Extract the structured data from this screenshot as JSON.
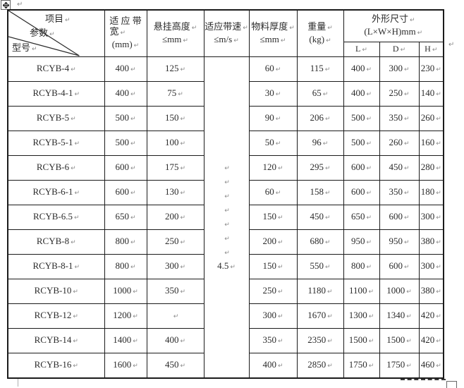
{
  "paragraph_mark": "↵",
  "table": {
    "diagonal_header": {
      "top": "项目",
      "middle": "参数",
      "bottom": "型号"
    },
    "headers": {
      "band_width": {
        "line1": "适 应 带",
        "line2": "宽",
        "line3": "(mm)"
      },
      "suspension_height": {
        "line1": "悬挂高度",
        "line2": "≤mm"
      },
      "belt_speed": {
        "line1": "适应带速",
        "line2": "≤m/s"
      },
      "material_thickness": {
        "line1": "物料厚度",
        "line2": "≤mm"
      },
      "weight": {
        "line1": "重量",
        "line2": "(kg)"
      },
      "dimensions": {
        "line1": "外形尺寸",
        "line2": "(L×W×H)mm",
        "sub": [
          "L",
          "D",
          "H"
        ]
      }
    },
    "belt_speed_value": "4.5",
    "belt_speed_blank_lines": 7,
    "rows": [
      {
        "model": "RCYB-4",
        "band_width": "400",
        "suspension_height": "125",
        "material_thickness": "60",
        "weight": "115",
        "L": "400",
        "D": "300",
        "H": "230"
      },
      {
        "model": "RCYB-4-1",
        "band_width": "400",
        "suspension_height": "75",
        "material_thickness": "30",
        "weight": "65",
        "L": "400",
        "D": "250",
        "H": "140"
      },
      {
        "model": "RCYB-5",
        "band_width": "500",
        "suspension_height": "150",
        "material_thickness": "90",
        "weight": "206",
        "L": "500",
        "D": "350",
        "H": "260"
      },
      {
        "model": "RCYB-5-1",
        "band_width": "500",
        "suspension_height": "100",
        "material_thickness": "50",
        "weight": "96",
        "L": "500",
        "D": "260",
        "H": "160"
      },
      {
        "model": "RCYB-6",
        "band_width": "600",
        "suspension_height": "175",
        "material_thickness": "120",
        "weight": "295",
        "L": "600",
        "D": "450",
        "H": "280"
      },
      {
        "model": "RCYB-6-1",
        "band_width": "600",
        "suspension_height": "130",
        "material_thickness": "60",
        "weight": "158",
        "L": "600",
        "D": "350",
        "H": "180"
      },
      {
        "model": "RCYB-6.5",
        "band_width": "650",
        "suspension_height": "200",
        "material_thickness": "150",
        "weight": "450",
        "L": "650",
        "D": "600",
        "H": "300"
      },
      {
        "model": "RCYB-8",
        "band_width": "800",
        "suspension_height": "250",
        "material_thickness": "200",
        "weight": "680",
        "L": "950",
        "D": "950",
        "H": "380"
      },
      {
        "model": "RCYB-8-1",
        "band_width": "800",
        "suspension_height": "300",
        "material_thickness": "150",
        "weight": "550",
        "L": "800",
        "D": "600",
        "H": "300"
      },
      {
        "model": "RCYB-10",
        "band_width": "1000",
        "suspension_height": "350",
        "material_thickness": "250",
        "weight": "1180",
        "L": "1100",
        "D": "1000",
        "H": "380"
      },
      {
        "model": "RCYB-12",
        "band_width": "1200",
        "suspension_height": "",
        "material_thickness": "300",
        "weight": "1670",
        "L": "1300",
        "D": "1340",
        "H": "420"
      },
      {
        "model": "RCYB-14",
        "band_width": "1400",
        "suspension_height": "400",
        "material_thickness": "350",
        "weight": "2350",
        "L": "1500",
        "D": "1500",
        "H": "420"
      },
      {
        "model": "RCYB-16",
        "band_width": "1600",
        "suspension_height": "450",
        "material_thickness": "400",
        "weight": "2850",
        "L": "1750",
        "D": "1750",
        "H": "460"
      }
    ]
  }
}
